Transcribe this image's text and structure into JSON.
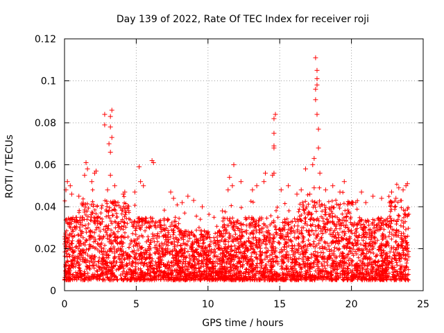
{
  "chart_data": {
    "type": "scatter",
    "title": "Day 139 of 2022, Rate Of TEC Index for receiver roji",
    "xlabel": "GPS time / hours",
    "ylabel": "ROTI / TECUs",
    "xlim": [
      0,
      25
    ],
    "ylim": [
      0,
      0.12
    ],
    "x_ticks": [
      0,
      5,
      10,
      15,
      20,
      25
    ],
    "x_tick_labels": [
      "0",
      "5",
      "10",
      "15",
      "20",
      "25"
    ],
    "y_ticks": [
      0,
      0.02,
      0.04,
      0.06,
      0.08,
      0.1,
      0.12
    ],
    "y_tick_labels": [
      "0",
      "0.02",
      "0.04",
      "0.06",
      "0.08",
      "0.1",
      "0.12"
    ],
    "grid": true,
    "marker": "+",
    "marker_color": "#ff0000",
    "series": [
      {
        "name": "ROTI",
        "note": "dense band of thousands of points; background sampled, notable values listed",
        "background_band": {
          "x_range": [
            0,
            24
          ],
          "typical_range": [
            0.005,
            0.035
          ]
        },
        "points": [
          [
            0.1,
            0.048
          ],
          [
            0.2,
            0.052
          ],
          [
            0.4,
            0.05
          ],
          [
            0.5,
            0.046
          ],
          [
            1.0,
            0.045
          ],
          [
            1.4,
            0.055
          ],
          [
            1.5,
            0.061
          ],
          [
            1.6,
            0.058
          ],
          [
            1.9,
            0.052
          ],
          [
            2.1,
            0.056
          ],
          [
            2.2,
            0.057
          ],
          [
            2.8,
            0.079
          ],
          [
            2.8,
            0.084
          ],
          [
            3.0,
            0.048
          ],
          [
            3.1,
            0.07
          ],
          [
            3.2,
            0.066
          ],
          [
            3.2,
            0.078
          ],
          [
            3.2,
            0.083
          ],
          [
            3.3,
            0.073
          ],
          [
            3.3,
            0.086
          ],
          [
            3.2,
            0.055
          ],
          [
            3.5,
            0.05
          ],
          [
            4.1,
            0.046
          ],
          [
            4.2,
            0.047
          ],
          [
            4.9,
            0.047
          ],
          [
            5.2,
            0.059
          ],
          [
            5.3,
            0.052
          ],
          [
            5.5,
            0.05
          ],
          [
            6.1,
            0.062
          ],
          [
            6.2,
            0.061
          ],
          [
            7.4,
            0.047
          ],
          [
            7.6,
            0.044
          ],
          [
            8.2,
            0.042
          ],
          [
            8.6,
            0.045
          ],
          [
            9.0,
            0.043
          ],
          [
            9.6,
            0.04
          ],
          [
            11.0,
            0.038
          ],
          [
            11.4,
            0.048
          ],
          [
            11.5,
            0.054
          ],
          [
            11.8,
            0.06
          ],
          [
            11.7,
            0.05
          ],
          [
            12.3,
            0.052
          ],
          [
            13.1,
            0.048
          ],
          [
            13.4,
            0.05
          ],
          [
            13.9,
            0.052
          ],
          [
            14.0,
            0.056
          ],
          [
            14.5,
            0.055
          ],
          [
            14.6,
            0.068
          ],
          [
            14.6,
            0.069
          ],
          [
            14.6,
            0.075
          ],
          [
            14.6,
            0.082
          ],
          [
            14.7,
            0.084
          ],
          [
            14.6,
            0.056
          ],
          [
            15.1,
            0.048
          ],
          [
            15.6,
            0.05
          ],
          [
            16.2,
            0.046
          ],
          [
            16.5,
            0.048
          ],
          [
            16.8,
            0.058
          ],
          [
            17.1,
            0.046
          ],
          [
            17.3,
            0.06
          ],
          [
            17.4,
            0.063
          ],
          [
            17.5,
            0.091
          ],
          [
            17.5,
            0.096
          ],
          [
            17.6,
            0.098
          ],
          [
            17.6,
            0.101
          ],
          [
            17.6,
            0.105
          ],
          [
            17.5,
            0.111
          ],
          [
            17.6,
            0.084
          ],
          [
            17.7,
            0.068
          ],
          [
            17.7,
            0.077
          ],
          [
            17.8,
            0.056
          ],
          [
            17.4,
            0.049
          ],
          [
            18.2,
            0.048
          ],
          [
            18.7,
            0.05
          ],
          [
            19.2,
            0.047
          ],
          [
            19.5,
            0.052
          ],
          [
            20.3,
            0.042
          ],
          [
            20.7,
            0.047
          ],
          [
            21.0,
            0.042
          ],
          [
            21.5,
            0.045
          ],
          [
            22.1,
            0.044
          ],
          [
            22.8,
            0.047
          ],
          [
            23.1,
            0.044
          ],
          [
            23.3,
            0.049
          ],
          [
            23.6,
            0.048
          ],
          [
            23.8,
            0.05
          ],
          [
            23.9,
            0.051
          ]
        ]
      }
    ]
  }
}
